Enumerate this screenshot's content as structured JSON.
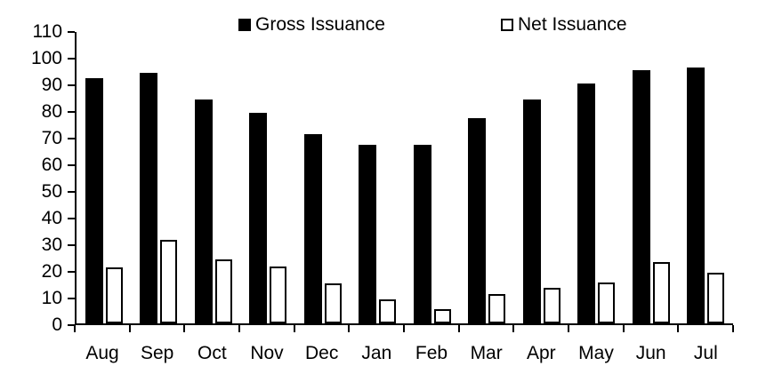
{
  "chart_data": {
    "type": "bar",
    "title": "",
    "categories": [
      "Aug",
      "Sep",
      "Oct",
      "Nov",
      "Dec",
      "Jan",
      "Feb",
      "Mar",
      "Apr",
      "May",
      "Jun",
      "Jul"
    ],
    "series": [
      {
        "name": "Gross Issuance",
        "style": "solid-black",
        "values": [
          92,
          94,
          84,
          79,
          71,
          67,
          67,
          77,
          84,
          90,
          95,
          96
        ]
      },
      {
        "name": "Net Issuance",
        "style": "white-outline",
        "values": [
          21,
          31.5,
          24,
          21.5,
          15,
          9,
          5.5,
          11,
          13.5,
          15.5,
          23,
          19
        ]
      }
    ],
    "xlabel": "",
    "ylabel": "",
    "ylim": [
      0,
      110
    ],
    "y_ticks": [
      0,
      10,
      20,
      30,
      40,
      50,
      60,
      70,
      80,
      90,
      100,
      110
    ],
    "grid": false,
    "legend_position": "top",
    "colors": {
      "gross": "#000000",
      "net_fill": "#ffffff",
      "net_border": "#000000",
      "axis": "#000000"
    }
  }
}
